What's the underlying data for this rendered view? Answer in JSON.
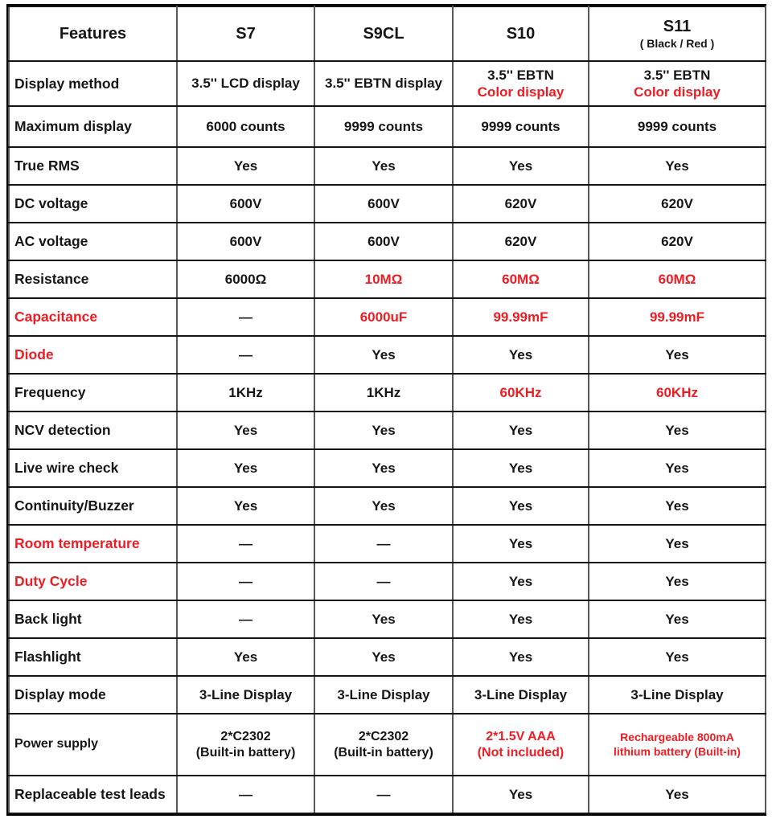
{
  "theme": {
    "accent_red": "#ee1c23",
    "text_black": "#161616",
    "background": "#ffffff"
  },
  "table": {
    "columns": [
      "Features",
      "S7",
      "S9CL",
      "S10",
      "S11"
    ],
    "s11_subtitle": "( Black / Red )",
    "rows": [
      {
        "feature": {
          "text": "Display method",
          "red": false
        },
        "cells": [
          {
            "lines": [
              {
                "text": "3.5'' LCD display",
                "red": false
              }
            ]
          },
          {
            "lines": [
              {
                "text": "3.5'' EBTN display",
                "red": false
              }
            ]
          },
          {
            "lines": [
              {
                "text": "3.5'' EBTN",
                "red": false
              },
              {
                "text": "Color display",
                "red": true
              }
            ]
          },
          {
            "lines": [
              {
                "text": "3.5'' EBTN",
                "red": false
              },
              {
                "text": "Color display",
                "red": true
              }
            ]
          }
        ]
      },
      {
        "feature": {
          "text": "Maximum display",
          "red": false
        },
        "cells": [
          {
            "lines": [
              {
                "text": "6000 counts",
                "red": false
              }
            ]
          },
          {
            "lines": [
              {
                "text": "9999 counts",
                "red": false
              }
            ]
          },
          {
            "lines": [
              {
                "text": "9999 counts",
                "red": false
              }
            ]
          },
          {
            "lines": [
              {
                "text": "9999 counts",
                "red": false
              }
            ]
          }
        ]
      },
      {
        "feature": {
          "text": "True RMS",
          "red": false
        },
        "cells": [
          {
            "lines": [
              {
                "text": "Yes",
                "red": false
              }
            ]
          },
          {
            "lines": [
              {
                "text": "Yes",
                "red": false
              }
            ]
          },
          {
            "lines": [
              {
                "text": "Yes",
                "red": false
              }
            ]
          },
          {
            "lines": [
              {
                "text": "Yes",
                "red": false
              }
            ]
          }
        ]
      },
      {
        "feature": {
          "text": "DC voltage",
          "red": false
        },
        "cells": [
          {
            "lines": [
              {
                "text": "600V",
                "red": false
              }
            ]
          },
          {
            "lines": [
              {
                "text": "600V",
                "red": false
              }
            ]
          },
          {
            "lines": [
              {
                "text": "620V",
                "red": false
              }
            ]
          },
          {
            "lines": [
              {
                "text": "620V",
                "red": false
              }
            ]
          }
        ]
      },
      {
        "feature": {
          "text": "AC voltage",
          "red": false
        },
        "cells": [
          {
            "lines": [
              {
                "text": "600V",
                "red": false
              }
            ]
          },
          {
            "lines": [
              {
                "text": "600V",
                "red": false
              }
            ]
          },
          {
            "lines": [
              {
                "text": "620V",
                "red": false
              }
            ]
          },
          {
            "lines": [
              {
                "text": "620V",
                "red": false
              }
            ]
          }
        ]
      },
      {
        "feature": {
          "text": "Resistance",
          "red": false
        },
        "cells": [
          {
            "lines": [
              {
                "text": "6000Ω",
                "red": false
              }
            ]
          },
          {
            "lines": [
              {
                "text": "10MΩ",
                "red": true
              }
            ]
          },
          {
            "lines": [
              {
                "text": "60MΩ",
                "red": true
              }
            ]
          },
          {
            "lines": [
              {
                "text": "60MΩ",
                "red": true
              }
            ]
          }
        ]
      },
      {
        "feature": {
          "text": "Capacitance",
          "red": true
        },
        "cells": [
          {
            "lines": [
              {
                "text": "—",
                "red": false
              }
            ]
          },
          {
            "lines": [
              {
                "text": "6000uF",
                "red": true
              }
            ]
          },
          {
            "lines": [
              {
                "text": "99.99mF",
                "red": true
              }
            ]
          },
          {
            "lines": [
              {
                "text": "99.99mF",
                "red": true
              }
            ]
          }
        ]
      },
      {
        "feature": {
          "text": "Diode",
          "red": true
        },
        "cells": [
          {
            "lines": [
              {
                "text": "—",
                "red": false
              }
            ]
          },
          {
            "lines": [
              {
                "text": "Yes",
                "red": false
              }
            ]
          },
          {
            "lines": [
              {
                "text": "Yes",
                "red": false
              }
            ]
          },
          {
            "lines": [
              {
                "text": "Yes",
                "red": false
              }
            ]
          }
        ]
      },
      {
        "feature": {
          "text": "Frequency",
          "red": false
        },
        "cells": [
          {
            "lines": [
              {
                "text": "1KHz",
                "red": false
              }
            ]
          },
          {
            "lines": [
              {
                "text": "1KHz",
                "red": false
              }
            ]
          },
          {
            "lines": [
              {
                "text": "60KHz",
                "red": true
              }
            ]
          },
          {
            "lines": [
              {
                "text": "60KHz",
                "red": true
              }
            ]
          }
        ]
      },
      {
        "feature": {
          "text": "NCV detection",
          "red": false
        },
        "cells": [
          {
            "lines": [
              {
                "text": "Yes",
                "red": false
              }
            ]
          },
          {
            "lines": [
              {
                "text": "Yes",
                "red": false
              }
            ]
          },
          {
            "lines": [
              {
                "text": "Yes",
                "red": false
              }
            ]
          },
          {
            "lines": [
              {
                "text": "Yes",
                "red": false
              }
            ]
          }
        ]
      },
      {
        "feature": {
          "text": "Live wire check",
          "red": false
        },
        "cells": [
          {
            "lines": [
              {
                "text": "Yes",
                "red": false
              }
            ]
          },
          {
            "lines": [
              {
                "text": "Yes",
                "red": false
              }
            ]
          },
          {
            "lines": [
              {
                "text": "Yes",
                "red": false
              }
            ]
          },
          {
            "lines": [
              {
                "text": "Yes",
                "red": false
              }
            ]
          }
        ]
      },
      {
        "feature": {
          "text": "Continuity/Buzzer",
          "red": false
        },
        "cells": [
          {
            "lines": [
              {
                "text": "Yes",
                "red": false
              }
            ]
          },
          {
            "lines": [
              {
                "text": "Yes",
                "red": false
              }
            ]
          },
          {
            "lines": [
              {
                "text": "Yes",
                "red": false
              }
            ]
          },
          {
            "lines": [
              {
                "text": "Yes",
                "red": false
              }
            ]
          }
        ]
      },
      {
        "feature": {
          "text": "Room temperature",
          "red": true
        },
        "cells": [
          {
            "lines": [
              {
                "text": "—",
                "red": false
              }
            ]
          },
          {
            "lines": [
              {
                "text": "—",
                "red": false
              }
            ]
          },
          {
            "lines": [
              {
                "text": "Yes",
                "red": false
              }
            ]
          },
          {
            "lines": [
              {
                "text": "Yes",
                "red": false
              }
            ]
          }
        ]
      },
      {
        "feature": {
          "text": "Duty Cycle",
          "red": true
        },
        "cells": [
          {
            "lines": [
              {
                "text": "—",
                "red": false
              }
            ]
          },
          {
            "lines": [
              {
                "text": "—",
                "red": false
              }
            ]
          },
          {
            "lines": [
              {
                "text": "Yes",
                "red": false
              }
            ]
          },
          {
            "lines": [
              {
                "text": "Yes",
                "red": false
              }
            ]
          }
        ]
      },
      {
        "feature": {
          "text": "Back light",
          "red": false
        },
        "cells": [
          {
            "lines": [
              {
                "text": "—",
                "red": false
              }
            ]
          },
          {
            "lines": [
              {
                "text": "Yes",
                "red": false
              }
            ]
          },
          {
            "lines": [
              {
                "text": "Yes",
                "red": false
              }
            ]
          },
          {
            "lines": [
              {
                "text": "Yes",
                "red": false
              }
            ]
          }
        ]
      },
      {
        "feature": {
          "text": "Flashlight",
          "red": false
        },
        "cells": [
          {
            "lines": [
              {
                "text": "Yes",
                "red": false
              }
            ]
          },
          {
            "lines": [
              {
                "text": "Yes",
                "red": false
              }
            ]
          },
          {
            "lines": [
              {
                "text": "Yes",
                "red": false
              }
            ]
          },
          {
            "lines": [
              {
                "text": "Yes",
                "red": false
              }
            ]
          }
        ]
      },
      {
        "feature": {
          "text": "Display mode",
          "red": false
        },
        "cells": [
          {
            "lines": [
              {
                "text": "3-Line Display",
                "red": false
              }
            ]
          },
          {
            "lines": [
              {
                "text": "3-Line Display",
                "red": false
              }
            ]
          },
          {
            "lines": [
              {
                "text": "3-Line Display",
                "red": false
              }
            ]
          },
          {
            "lines": [
              {
                "text": "3-Line Display",
                "red": false
              }
            ]
          }
        ]
      },
      {
        "feature": {
          "text": "Power supply",
          "red": false
        },
        "cells": [
          {
            "lines": [
              {
                "text": "2*C2302",
                "red": false
              },
              {
                "text": "(Built-in battery)",
                "red": false
              }
            ]
          },
          {
            "lines": [
              {
                "text": "2*C2302",
                "red": false
              },
              {
                "text": "(Built-in battery)",
                "red": false
              }
            ]
          },
          {
            "lines": [
              {
                "text": "2*1.5V AAA",
                "red": true
              },
              {
                "text": "(Not included)",
                "red": true
              }
            ]
          },
          {
            "lines": [
              {
                "text": "Rechargeable 800mA",
                "red": true
              },
              {
                "text": "lithium battery (Built-in)",
                "red": true
              }
            ]
          }
        ]
      },
      {
        "feature": {
          "text": "Replaceable test leads",
          "red": false
        },
        "cells": [
          {
            "lines": [
              {
                "text": "—",
                "red": false
              }
            ]
          },
          {
            "lines": [
              {
                "text": "—",
                "red": false
              }
            ]
          },
          {
            "lines": [
              {
                "text": "Yes",
                "red": false
              }
            ]
          },
          {
            "lines": [
              {
                "text": "Yes",
                "red": false
              }
            ]
          }
        ]
      }
    ]
  }
}
